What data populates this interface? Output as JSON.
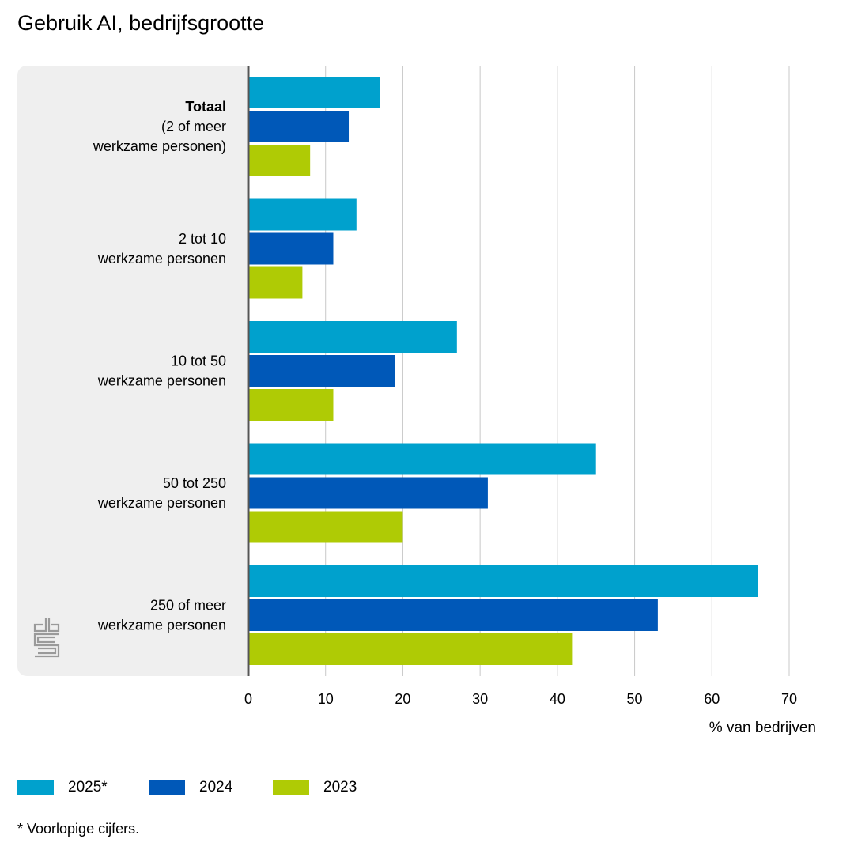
{
  "chart_data": {
    "type": "bar",
    "orientation": "horizontal",
    "title": "Gebruik AI, bedrijfsgrootte",
    "categories": [
      {
        "bold": "Totaal",
        "lines": [
          "(2 of meer",
          "werkzame personen)"
        ]
      },
      {
        "bold": "",
        "lines": [
          "2 tot 10",
          "werkzame personen"
        ]
      },
      {
        "bold": "",
        "lines": [
          "10 tot 50",
          "werkzame personen"
        ]
      },
      {
        "bold": "",
        "lines": [
          "50 tot 250",
          "werkzame personen"
        ]
      },
      {
        "bold": "",
        "lines": [
          "250 of meer",
          "werkzame personen"
        ]
      }
    ],
    "series": [
      {
        "name": "2025*",
        "color": "#00a1cd",
        "values": [
          17,
          14,
          27,
          45,
          66
        ]
      },
      {
        "name": "2024",
        "color": "#0058b8",
        "values": [
          13,
          11,
          19,
          31,
          53
        ]
      },
      {
        "name": "2023",
        "color": "#afcb05",
        "values": [
          8,
          7,
          11,
          20,
          42
        ]
      }
    ],
    "xlim": [
      0,
      70
    ],
    "xticks": [
      0,
      10,
      20,
      30,
      40,
      50,
      60,
      70
    ],
    "xlabel": "% van bedrijven",
    "ylabel": "",
    "grid": true,
    "legend": "bottom-left",
    "footnote": "* Voorlopige cijfers."
  },
  "logo": {
    "name": "cbs-logo"
  }
}
